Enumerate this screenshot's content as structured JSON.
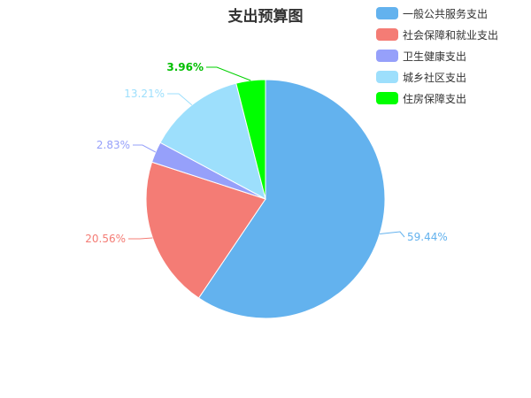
{
  "chart_data": {
    "type": "pie",
    "title": "支出预算图",
    "series": [
      {
        "name": "一般公共服务支出",
        "value": 59.44,
        "label": "59.44%",
        "color": "#63b2ee"
      },
      {
        "name": "社会保障和就业支出",
        "value": 20.56,
        "label": "20.56%",
        "color": "#f47c75"
      },
      {
        "name": "卫生健康支出",
        "value": 2.83,
        "label": "2.83%",
        "color": "#96a0fa"
      },
      {
        "name": "城乡社区支出",
        "value": 13.21,
        "label": "13.21%",
        "color": "#9ddffc"
      },
      {
        "name": "住房保障支出",
        "value": 3.96,
        "label": "3.96%",
        "color": "#00ff00"
      }
    ],
    "legend_position": "top-right",
    "label_color_for_green": "#00bf00"
  }
}
